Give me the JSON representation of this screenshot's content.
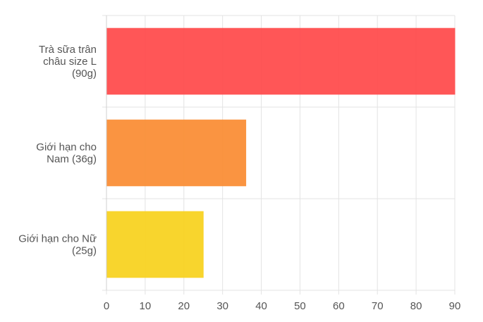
{
  "chart_data": {
    "type": "bar",
    "orientation": "horizontal",
    "categories": [
      "Trà sữa trân châu size L (90g)",
      "Giới hạn cho Nam (36g)",
      "Giới hạn cho Nữ (25g)"
    ],
    "category_lines": [
      [
        "Trà sữa trân",
        "châu size L",
        "(90g)"
      ],
      [
        "Giới hạn cho",
        "Nam (36g)"
      ],
      [
        "Giới hạn cho Nữ",
        "(25g)"
      ]
    ],
    "values": [
      90,
      36,
      25
    ],
    "colors": [
      "#ff4d4f",
      "#fa8f37",
      "#f8d322"
    ],
    "x_ticks": [
      0,
      10,
      20,
      30,
      40,
      50,
      60,
      70,
      80,
      90
    ],
    "xlim": [
      0,
      90
    ],
    "grid": true,
    "legend": "none",
    "title": "",
    "xlabel": "",
    "ylabel": ""
  }
}
